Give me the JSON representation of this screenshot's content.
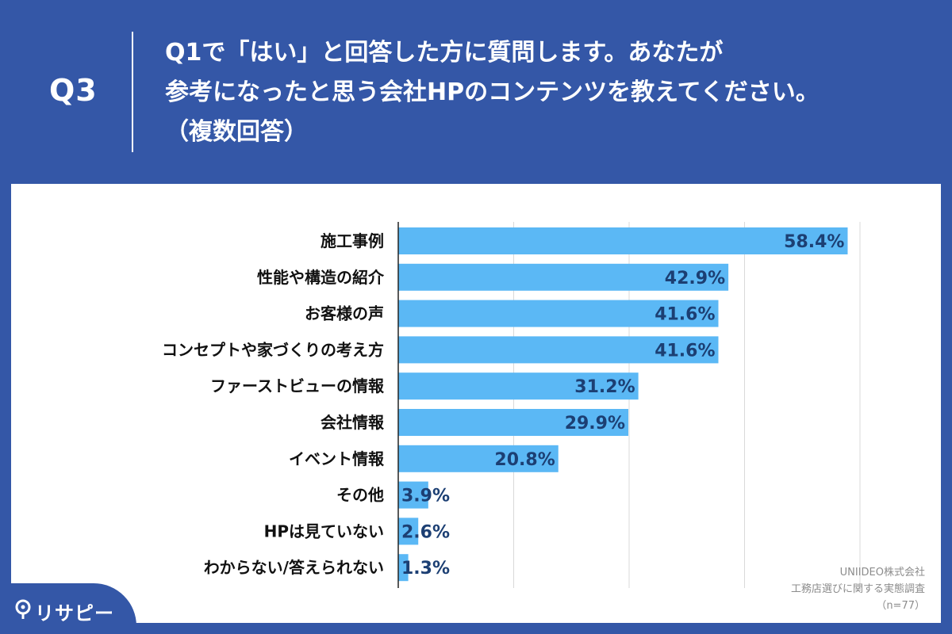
{
  "header": {
    "q_number": "Q3",
    "question_lines": [
      "Q1で「はい」と回答した方に質問します。あなたが",
      "参考になったと思う会社HPのコンテンツを教えてください。",
      "（複数回答）"
    ]
  },
  "source": {
    "company": "UNIIDEO株式会社",
    "survey": "工務店選びに関する実態調査",
    "sample": "（n=77）"
  },
  "brand": {
    "name": "リサピー"
  },
  "colors": {
    "header_bg": "#3457a7",
    "bar": "#5bb8f5",
    "value_label": "#1c3f73",
    "category_label": "#111111",
    "gridline": "#d9d9d9"
  },
  "chart_data": {
    "type": "bar",
    "orientation": "horizontal",
    "categories": [
      "施工事例",
      "性能や構造の紹介",
      "お客様の声",
      "コンセプトや家づくりの考え方",
      "ファーストビューの情報",
      "会社情報",
      "イベント情報",
      "その他",
      "HPは見ていない",
      "わからない/答えられない"
    ],
    "values": [
      58.4,
      42.9,
      41.6,
      41.6,
      31.2,
      29.9,
      20.8,
      3.9,
      2.6,
      1.3
    ],
    "value_labels": [
      "58.4%",
      "42.9%",
      "41.6%",
      "41.6%",
      "31.2%",
      "29.9%",
      "20.8%",
      "3.9%",
      "2.6%",
      "1.3%"
    ],
    "xlim": [
      0,
      60
    ],
    "grid": true,
    "legend": "none"
  }
}
